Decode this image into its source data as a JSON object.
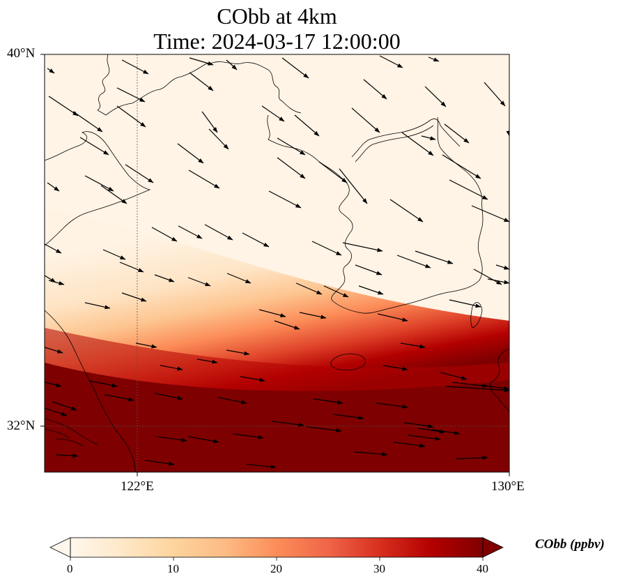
{
  "title": {
    "line1": "CObb at 4km",
    "line2": "Time: 2024-03-17 12:00:00"
  },
  "axes": {
    "lat_ticks": [
      {
        "value": 40,
        "label": "40°N"
      },
      {
        "value": 32,
        "label": "32°N"
      }
    ],
    "lon_ticks": [
      {
        "value": 122,
        "label": "122°E"
      },
      {
        "value": 130,
        "label": "130°E"
      }
    ],
    "extent": {
      "lon_min": 120,
      "lon_max": 130,
      "lat_min": 31,
      "lat_max": 40
    },
    "gridlines": "dotted, at tick positions"
  },
  "colorbar": {
    "label": "CObb (ppbv)",
    "colormap": "OrRd",
    "range": [
      0,
      40
    ],
    "ticks": [
      "0",
      "10",
      "20",
      "30",
      "40"
    ],
    "extend": "both",
    "colors": [
      "#fff7ec",
      "#fee8c8",
      "#fdd49e",
      "#fdbb84",
      "#fc8d59",
      "#ef6548",
      "#d7301f",
      "#b30000",
      "#7f0000"
    ]
  },
  "colors": {
    "coastline": "#000000",
    "wind_arrow": "#000000"
  }
}
